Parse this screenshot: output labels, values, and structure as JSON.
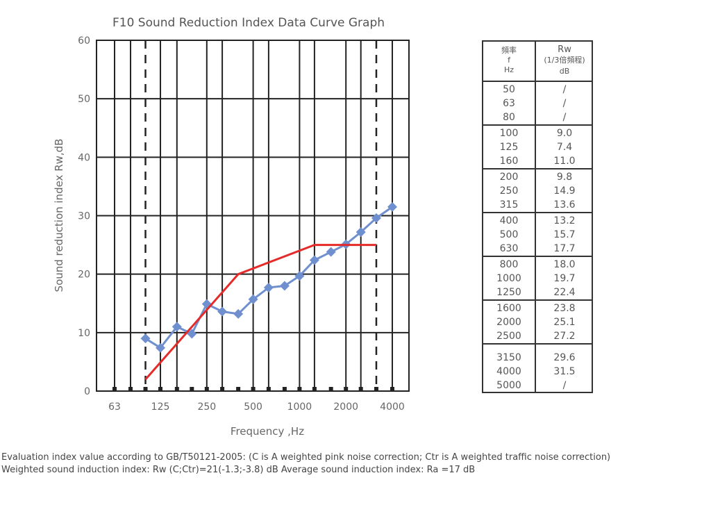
{
  "chart_data": {
    "type": "line",
    "title": "F10 Sound Reduction Index Data Curve Graph",
    "xlabel": "Frequency ,Hz",
    "ylabel": "Sound reduction index Rw,dB",
    "ylim": [
      0,
      60
    ],
    "yticks": [
      "0",
      "10",
      "20",
      "30",
      "40",
      "50",
      "60"
    ],
    "xticks": [
      "63",
      "125",
      "250",
      "500",
      "1000",
      "2000",
      "4000"
    ],
    "grid": true,
    "series": [
      {
        "color": "#6f8fcf",
        "marker": "diamond",
        "x": [
          100,
          125,
          160,
          200,
          250,
          315,
          400,
          500,
          630,
          800,
          1000,
          1250,
          1600,
          2000,
          2500,
          3150,
          4000
        ],
        "y": [
          9.0,
          7.4,
          11.0,
          9.8,
          14.9,
          13.6,
          13.2,
          15.7,
          17.7,
          18.0,
          19.7,
          22.4,
          23.8,
          25.1,
          27.2,
          29.6,
          31.5
        ]
      },
      {
        "color": "#e52a2a",
        "x": [
          100,
          400,
          1250,
          3150
        ],
        "y": [
          2,
          20,
          25,
          25
        ]
      }
    ],
    "reference_lines_x": [
      100,
      3150
    ]
  },
  "table": {
    "header_col1": [
      "頻率",
      "f",
      "Hz"
    ],
    "header_col2": [
      "Rw",
      "(1/3倍頻程)",
      "dB"
    ],
    "groups": [
      {
        "freq": [
          "50",
          "63",
          "80"
        ],
        "rw": [
          "/",
          "/",
          "/"
        ]
      },
      {
        "freq": [
          "100",
          "125",
          "160"
        ],
        "rw": [
          "9.0",
          "7.4",
          "11.0"
        ]
      },
      {
        "freq": [
          "200",
          "250",
          "315"
        ],
        "rw": [
          "9.8",
          "14.9",
          "13.6"
        ]
      },
      {
        "freq": [
          "400",
          "500",
          "630"
        ],
        "rw": [
          "13.2",
          "15.7",
          "17.7"
        ]
      },
      {
        "freq": [
          "800",
          "1000",
          "1250"
        ],
        "rw": [
          "18.0",
          "19.7",
          "22.4"
        ]
      },
      {
        "freq": [
          "1600",
          "2000",
          "2500"
        ],
        "rw": [
          "23.8",
          "25.1",
          "27.2"
        ]
      },
      {
        "freq": [
          "3150",
          "4000",
          "5000"
        ],
        "rw": [
          "29.6",
          "31.5",
          "/"
        ]
      }
    ]
  },
  "footnote": {
    "line1": "Evaluation index value according to GB/T50121-2005: (C is A weighted pink noise correction; Ctr is A weighted traffic noise correction)",
    "line2": "Weighted sound induction index: Rw (C;Ctr)=21(-1.3;-3.8) dB    Average sound induction index: Ra =17 dB"
  }
}
